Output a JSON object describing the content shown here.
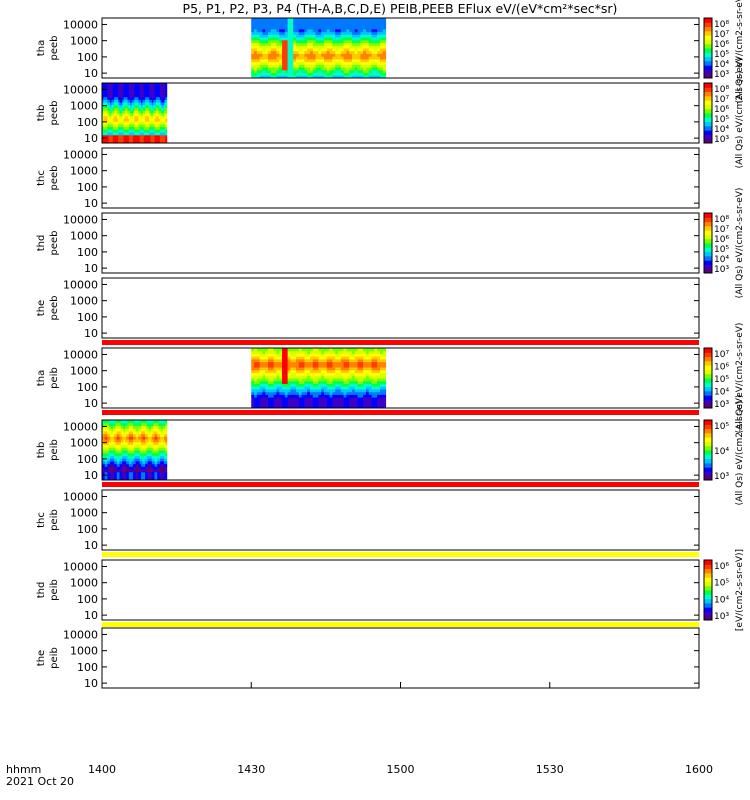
{
  "title": "P5, P1, P2, P3, P4 (TH-A,B,C,D,E) PEIB,PEEB EFlux eV/(eV*cm²*sec*sr)",
  "chart_data": {
    "type": "heatmap",
    "x_axis": {
      "range": [
        "14:00",
        "16:00"
      ],
      "ticks": [
        "1400",
        "1430",
        "1500",
        "1530",
        "1600"
      ],
      "label_line1": "hhmm",
      "label_line2": "2021 Oct 20"
    },
    "y_ticks": [
      "10000",
      "1000",
      "100",
      "10"
    ],
    "y_range_eV": [
      5,
      25000
    ],
    "y_scale": "log",
    "panels": [
      {
        "id": "tha-peeb",
        "label1": "tha",
        "label2": "peeb",
        "data_start_min": 30,
        "data_end_min": 57,
        "profile": "electron",
        "flag_bar": null,
        "colorbar": {
          "ticks": [
            "10⁸",
            "10⁷",
            "10⁶",
            "10⁵",
            "10⁴",
            "10³"
          ],
          "label": "(All Qs) eV/(cm2-s-sr-eV)"
        }
      },
      {
        "id": "thb-peeb",
        "label1": "thb",
        "label2": "peeb",
        "data_start_min": 0,
        "data_end_min": 13,
        "profile": "electron_b",
        "flag_bar": null,
        "colorbar": {
          "ticks": [
            "10⁸",
            "10⁷",
            "10⁶",
            "10⁵",
            "10⁴",
            "10³"
          ],
          "label": "(All Qs) eV/(cm2-s-sr-eV)"
        }
      },
      {
        "id": "thc-peeb",
        "label1": "thc",
        "label2": "peeb",
        "data_start_min": null,
        "data_end_min": null,
        "profile": null,
        "flag_bar": null,
        "colorbar": null
      },
      {
        "id": "thd-peeb",
        "label1": "thd",
        "label2": "peeb",
        "data_start_min": null,
        "data_end_min": null,
        "profile": null,
        "flag_bar": null,
        "colorbar": {
          "ticks": [
            "10⁸",
            "10⁷",
            "10⁶",
            "10⁵",
            "10⁴",
            "10³"
          ],
          "label": "(All Qs) eV/(cm2-s-sr-eV)"
        }
      },
      {
        "id": "the-peeb",
        "label1": "the",
        "label2": "peeb",
        "data_start_min": null,
        "data_end_min": null,
        "profile": null,
        "flag_bar": "#ff0000",
        "colorbar": null
      },
      {
        "id": "tha-peib",
        "label1": "tha",
        "label2": "peib",
        "data_start_min": 30,
        "data_end_min": 57,
        "profile": "ion",
        "flag_bar": "#ff0000",
        "colorbar": {
          "ticks": [
            "10⁷",
            "10⁶",
            "10⁵",
            "10⁴",
            "10³"
          ],
          "label": "(All Qs) eV/(cm2-s-sr-eV)"
        }
      },
      {
        "id": "thb-peib",
        "label1": "thb",
        "label2": "peib",
        "data_start_min": 0,
        "data_end_min": 13,
        "profile": "ion_b",
        "flag_bar": "#ff0000",
        "colorbar": {
          "ticks": [
            "10⁵",
            "10⁴",
            "10³"
          ],
          "label": "(All Qs) eV/(cm2-s-sr-eV)"
        }
      },
      {
        "id": "thc-peib",
        "label1": "thc",
        "label2": "peib",
        "data_start_min": null,
        "data_end_min": null,
        "profile": null,
        "flag_bar": "#ffff00",
        "colorbar": null
      },
      {
        "id": "thd-peib",
        "label1": "thd",
        "label2": "peib",
        "data_start_min": null,
        "data_end_min": null,
        "profile": null,
        "flag_bar": "#ffff00",
        "colorbar": {
          "ticks": [
            "10⁶",
            "10⁵",
            "10⁴",
            "10³"
          ],
          "label": "[eV/(cm2-s-sr-eV)]"
        }
      },
      {
        "id": "the-peib",
        "label1": "the",
        "label2": "peib",
        "data_start_min": null,
        "data_end_min": null,
        "profile": null,
        "flag_bar": null,
        "colorbar": null
      }
    ],
    "colormap": [
      "#5a0078",
      "#3c00c8",
      "#0000ff",
      "#0078ff",
      "#00c8ff",
      "#00ffc8",
      "#00ff50",
      "#78ff00",
      "#dcff00",
      "#ffff00",
      "#ffc800",
      "#ff8200",
      "#ff3c00",
      "#ff0000"
    ],
    "grid": false,
    "legend": "colorbars-right"
  }
}
